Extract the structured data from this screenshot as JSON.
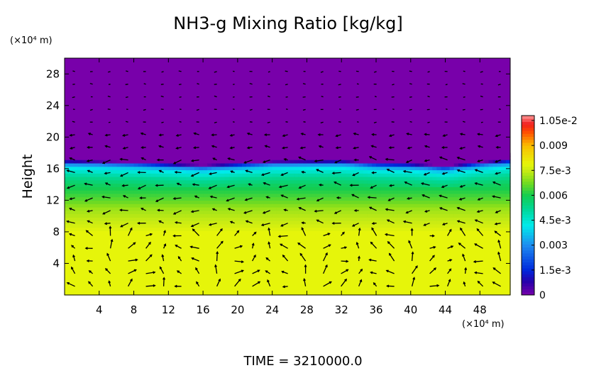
{
  "chart_data": {
    "type": "heatmap",
    "title": "NH3-g Mixing Ratio [kg/kg]",
    "ylabel": "Height",
    "yunit": "(×10⁴ m)",
    "xunit": "(×10⁴ m)",
    "footer": "TIME = 3210000.0",
    "xlim": [
      0,
      51.5
    ],
    "ylim": [
      0,
      30
    ],
    "xticks": [
      "4",
      "8",
      "12",
      "16",
      "20",
      "24",
      "28",
      "32",
      "36",
      "40",
      "44",
      "48"
    ],
    "xtick_values": [
      4,
      8,
      12,
      16,
      20,
      24,
      28,
      32,
      36,
      40,
      44,
      48
    ],
    "yticks": [
      "4",
      "8",
      "12",
      "16",
      "20",
      "24",
      "28"
    ],
    "ytick_values": [
      4,
      8,
      12,
      16,
      20,
      24,
      28
    ],
    "colorbar": {
      "range": [
        0,
        0.0108
      ],
      "labels": [
        "0",
        "1.5e-3",
        "0.003",
        "4.5e-3",
        "0.006",
        "7.5e-3",
        "0.009",
        "1.05e-2"
      ],
      "label_values": [
        0,
        0.0015,
        0.003,
        0.0045,
        0.006,
        0.0075,
        0.009,
        0.0105
      ]
    },
    "field": {
      "height_profile_km": [
        0,
        4,
        8,
        9,
        11,
        12,
        13,
        14,
        15,
        16,
        16.5,
        17,
        30
      ],
      "value_profile": [
        0.0079,
        0.0079,
        0.0079,
        0.0076,
        0.0071,
        0.0066,
        0.0062,
        0.0058,
        0.0052,
        0.0042,
        0.003,
        0.0,
        0.0
      ],
      "interface_height_x": [
        0,
        8,
        16,
        24,
        32,
        36,
        40,
        44,
        48,
        51.5
      ],
      "interface_height_y": [
        16.6,
        16.4,
        16.0,
        16.5,
        16.6,
        16.3,
        16.2,
        15.9,
        16.4,
        16.7
      ]
    },
    "vector_field": "wind vectors (arrows) overlaid on the field"
  }
}
